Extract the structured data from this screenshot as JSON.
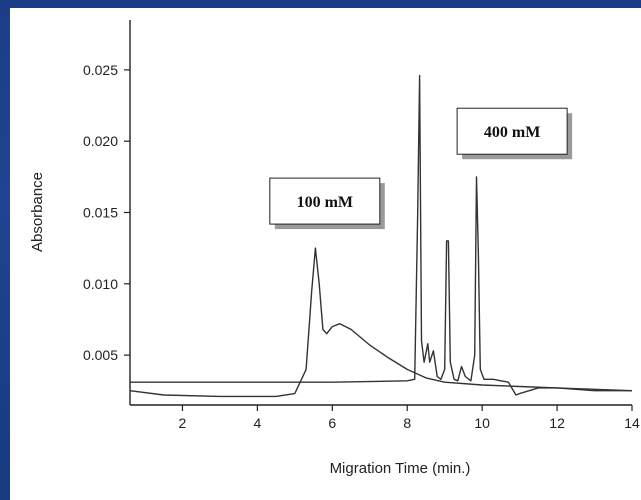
{
  "chart_data": {
    "type": "line",
    "title": "",
    "xlabel": "Migration Time (min.)",
    "ylabel": "Absorbance",
    "xlim": [
      0.6,
      14.0
    ],
    "ylim": [
      0.0015,
      0.0285
    ],
    "x_ticks": [
      2,
      4,
      6,
      8,
      10,
      12,
      14
    ],
    "x_tick_labels": [
      "2",
      "4",
      "6",
      "8",
      "10",
      "12",
      "14"
    ],
    "y_ticks": [
      0.005,
      0.01,
      0.015,
      0.02,
      0.025
    ],
    "y_tick_labels": [
      "0.005",
      "0.010",
      "0.015",
      "0.020",
      "0.025"
    ],
    "grid": false,
    "annotations": [
      {
        "text": "100 mM",
        "x": 5.8,
        "y": 0.0158
      },
      {
        "text": "400 mM",
        "x": 10.8,
        "y": 0.0207
      }
    ],
    "series": [
      {
        "name": "",
        "color": "#333333",
        "x": [
          0.6,
          1.5,
          3.0,
          4.5,
          5.0,
          5.3,
          5.45,
          5.55,
          5.65,
          5.75,
          5.85,
          6.0,
          6.2,
          6.5,
          7.0,
          7.5,
          8.0,
          8.5,
          9.0,
          10.0,
          11.0,
          12.0,
          13.0,
          14.0
        ],
        "y": [
          0.0025,
          0.0022,
          0.0021,
          0.0021,
          0.0023,
          0.004,
          0.0095,
          0.0125,
          0.01,
          0.0068,
          0.0065,
          0.007,
          0.0072,
          0.0068,
          0.0057,
          0.0048,
          0.004,
          0.0034,
          0.0031,
          0.0029,
          0.0028,
          0.0027,
          0.0026,
          0.0025
        ]
      },
      {
        "name": "",
        "color": "#333333",
        "x": [
          0.6,
          2.0,
          4.0,
          6.0,
          8.0,
          8.2,
          8.28,
          8.33,
          8.38,
          8.45,
          8.55,
          8.6,
          8.7,
          8.8,
          8.9,
          9.0,
          9.05,
          9.1,
          9.15,
          9.25,
          9.35,
          9.45,
          9.55,
          9.7,
          9.8,
          9.85,
          9.9,
          9.95,
          10.05,
          10.3,
          10.5,
          10.7,
          10.9,
          11.0,
          11.5,
          12.0,
          13.0,
          14.0
        ],
        "y": [
          0.0031,
          0.0031,
          0.0031,
          0.0031,
          0.0032,
          0.0033,
          0.015,
          0.0246,
          0.006,
          0.0045,
          0.0058,
          0.0045,
          0.0053,
          0.0035,
          0.0033,
          0.004,
          0.013,
          0.013,
          0.0045,
          0.0033,
          0.0032,
          0.0042,
          0.0035,
          0.0032,
          0.005,
          0.0175,
          0.012,
          0.004,
          0.0033,
          0.0033,
          0.0032,
          0.0031,
          0.0022,
          0.0023,
          0.0027,
          0.0027,
          0.0025,
          0.0025
        ]
      }
    ]
  }
}
